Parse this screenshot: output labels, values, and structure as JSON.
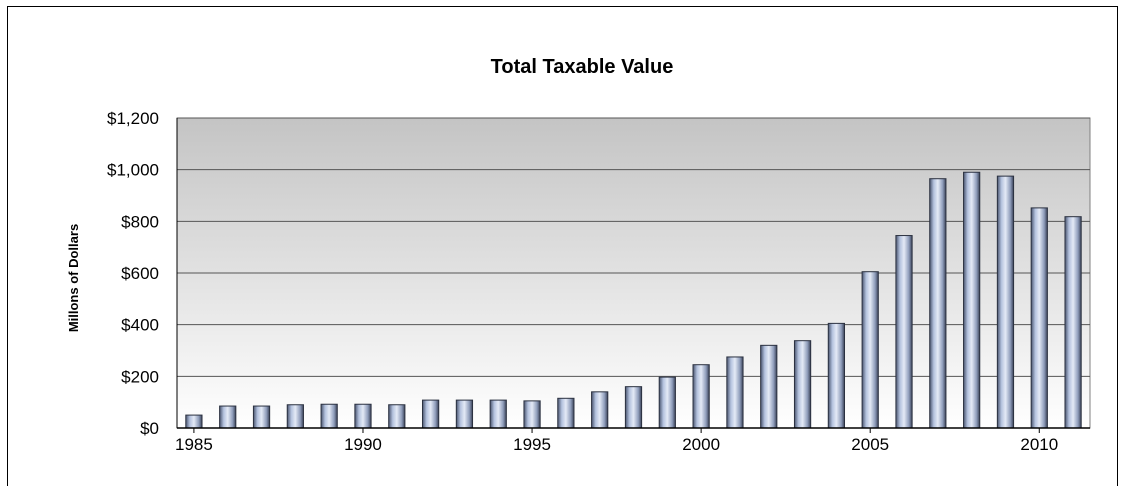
{
  "chart_data": {
    "type": "bar",
    "title": "Total Taxable Value",
    "xlabel": "",
    "ylabel": "Millons of Dollars",
    "ylim": [
      0,
      1200
    ],
    "yticks": [
      0,
      200,
      400,
      600,
      800,
      1000,
      1200
    ],
    "ytick_labels": [
      "$0",
      "$200",
      "$400",
      "$600",
      "$800",
      "$1,000",
      "$1,200"
    ],
    "xticks": [
      "1985",
      "1990",
      "1995",
      "2000",
      "2005",
      "2010"
    ],
    "grid": true,
    "categories": [
      "1985",
      "1986",
      "1987",
      "1988",
      "1989",
      "1990",
      "1991",
      "1992",
      "1993",
      "1994",
      "1995",
      "1996",
      "1997",
      "1998",
      "1999",
      "2000",
      "2001",
      "2002",
      "2003",
      "2004",
      "2005",
      "2006",
      "2007",
      "2008",
      "2009",
      "2010",
      "2011"
    ],
    "values": [
      50,
      85,
      85,
      90,
      92,
      92,
      90,
      108,
      108,
      108,
      105,
      115,
      140,
      160,
      197,
      245,
      275,
      320,
      338,
      405,
      605,
      745,
      965,
      990,
      975,
      852,
      818
    ],
    "colors": {
      "bar": "#a9b8d6",
      "bar_edge": "#2b3140",
      "plot_top": "#c4c4c4",
      "plot_bottom": "#ffffff",
      "grid": "#555555"
    }
  }
}
